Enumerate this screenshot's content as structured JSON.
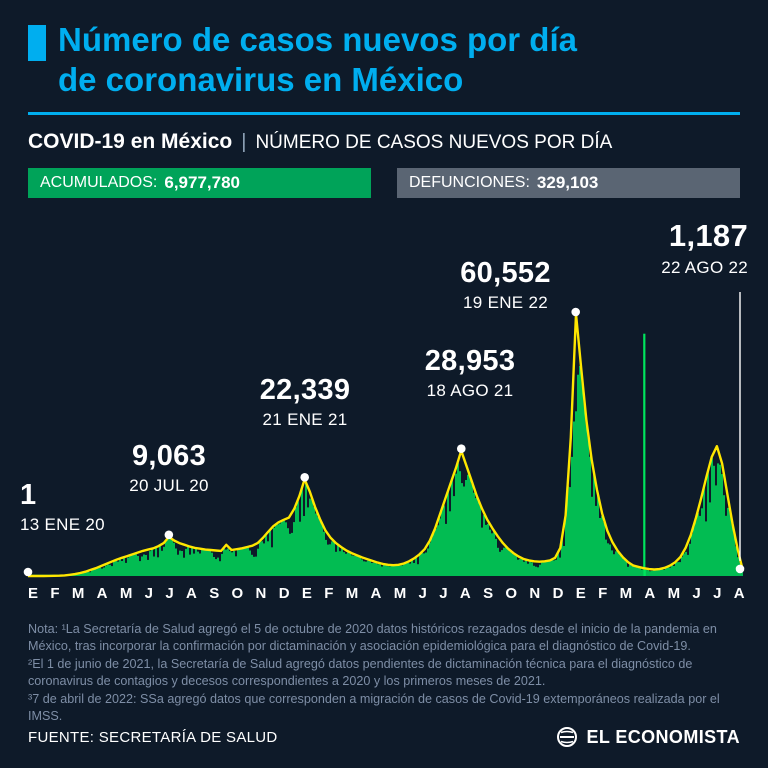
{
  "page": {
    "title_line1": "Número de casos nuevos por día",
    "title_line2": "de coronavirus en México",
    "subheader": {
      "title": "COVID-19 en México",
      "separator": "|",
      "subtitle": "NÚMERO DE CASOS NUEVOS POR DÍA"
    },
    "badges": {
      "accumulated_label": "ACUMULADOS:",
      "accumulated_value": "6,977,780",
      "deaths_label": "DEFUNCIONES:",
      "deaths_value": "329,103"
    },
    "notes": [
      "Nota: ¹La Secretaría de Salud agregó el 5 de octubre de 2020 datos históricos rezagados desde el inicio de la pandemia en México, tras incorporar la confirmación por dictaminación y asociación epidemiológica para el diagnóstico de Covid-19.",
      "²El 1 de junio de 2021, la Secretaría de Salud agregó datos pendientes de dictaminación técnica para el diagnóstico de coronavirus de contagios y decesos correspondientes a 2020 y los primeros meses de 2021.",
      "³7 de abril de 2022: SSa agregó datos que corresponden a migración de casos de Covid-19 extemporáneos realizada por el IMSS."
    ],
    "footer": {
      "source": "FUENTE: SECRETARÍA DE SALUD",
      "brand": "EL ECONOMISTA"
    }
  },
  "colors": {
    "background": "#0e1a29",
    "accent_cyan": "#00aeef",
    "chart_green": "#00e45c",
    "avg_line_yellow": "#ffe600",
    "badge_green": "#00a359",
    "badge_gray": "#5a6573",
    "note_gray": "#7e8ea6"
  },
  "chart_data": {
    "type": "area",
    "title": "COVID-19 en México — Número de casos nuevos por día",
    "x_range": [
      "13 ENE 20",
      "22 AGO 22"
    ],
    "x_tick_labels": [
      "E",
      "F",
      "M",
      "A",
      "M",
      "J",
      "J",
      "A",
      "S",
      "O",
      "N",
      "D",
      "E",
      "F",
      "M",
      "A",
      "M",
      "J",
      "J",
      "A",
      "S",
      "O",
      "N",
      "D",
      "E",
      "F",
      "M",
      "A",
      "M",
      "J",
      "J",
      "A"
    ],
    "ylim": [
      0,
      62000
    ],
    "grid": false,
    "legend": "none",
    "series": [
      {
        "name": "Casos nuevos por día (envolvente semanal, 13 ENE 20 - 22 AGO 22)",
        "values": [
          1,
          3,
          6,
          10,
          20,
          40,
          80,
          150,
          280,
          450,
          700,
          1000,
          1400,
          1800,
          2300,
          2800,
          3300,
          3800,
          4200,
          4600,
          5000,
          5400,
          5800,
          6100,
          6400,
          6900,
          7600,
          9063,
          8200,
          7600,
          7200,
          6800,
          6500,
          6300,
          6100,
          6000,
          5900,
          5800,
          7200,
          6000,
          6200,
          6400,
          6700,
          7000,
          7600,
          8800,
          10200,
          11500,
          12400,
          13000,
          13500,
          15500,
          18500,
          22339,
          19500,
          16000,
          13000,
          10500,
          8800,
          7600,
          6700,
          5900,
          5300,
          4800,
          4300,
          3900,
          3500,
          3100,
          2800,
          2600,
          2500,
          2600,
          2900,
          3400,
          4100,
          5000,
          6200,
          8200,
          11000,
          14500,
          18000,
          21500,
          25000,
          28953,
          25500,
          22000,
          18500,
          15500,
          13000,
          11000,
          9200,
          7600,
          6300,
          5300,
          4500,
          3900,
          3600,
          3400,
          3300,
          3400,
          3600,
          4200,
          6500,
          14000,
          32000,
          60552,
          48000,
          36000,
          27000,
          20000,
          14500,
          10500,
          7800,
          5800,
          4300,
          3200,
          2400,
          2100,
          1800,
          1600,
          1500,
          1600,
          1900,
          2400,
          3200,
          4400,
          6500,
          9500,
          13500,
          18000,
          23000,
          27500,
          30000,
          26000,
          19000,
          12000,
          6000,
          1187
        ]
      }
    ],
    "outliers": [
      {
        "x_frac": 0.862,
        "value": 56000,
        "note": "7 ABR 22: migración de casos extemporáneos (IMSS)"
      }
    ],
    "annotations": [
      {
        "value_label": "1",
        "date_label": "13 ENE 20",
        "value": 1,
        "x_frac": 0.0
      },
      {
        "value_label": "9,063",
        "date_label": "20 JUL 20",
        "value": 9063,
        "x_frac": 0.197
      },
      {
        "value_label": "22,339",
        "date_label": "21 ENE 21",
        "value": 22339,
        "x_frac": 0.387
      },
      {
        "value_label": "28,953",
        "date_label": "18 AGO 21",
        "value": 28953,
        "x_frac": 0.606
      },
      {
        "value_label": "60,552",
        "date_label": "19 ENE 22",
        "value": 60552,
        "x_frac": 0.766
      },
      {
        "value_label": "1,187",
        "date_label": "22 AGO 22",
        "value": 1187,
        "x_frac": 1.0,
        "leader_line": true
      }
    ]
  }
}
